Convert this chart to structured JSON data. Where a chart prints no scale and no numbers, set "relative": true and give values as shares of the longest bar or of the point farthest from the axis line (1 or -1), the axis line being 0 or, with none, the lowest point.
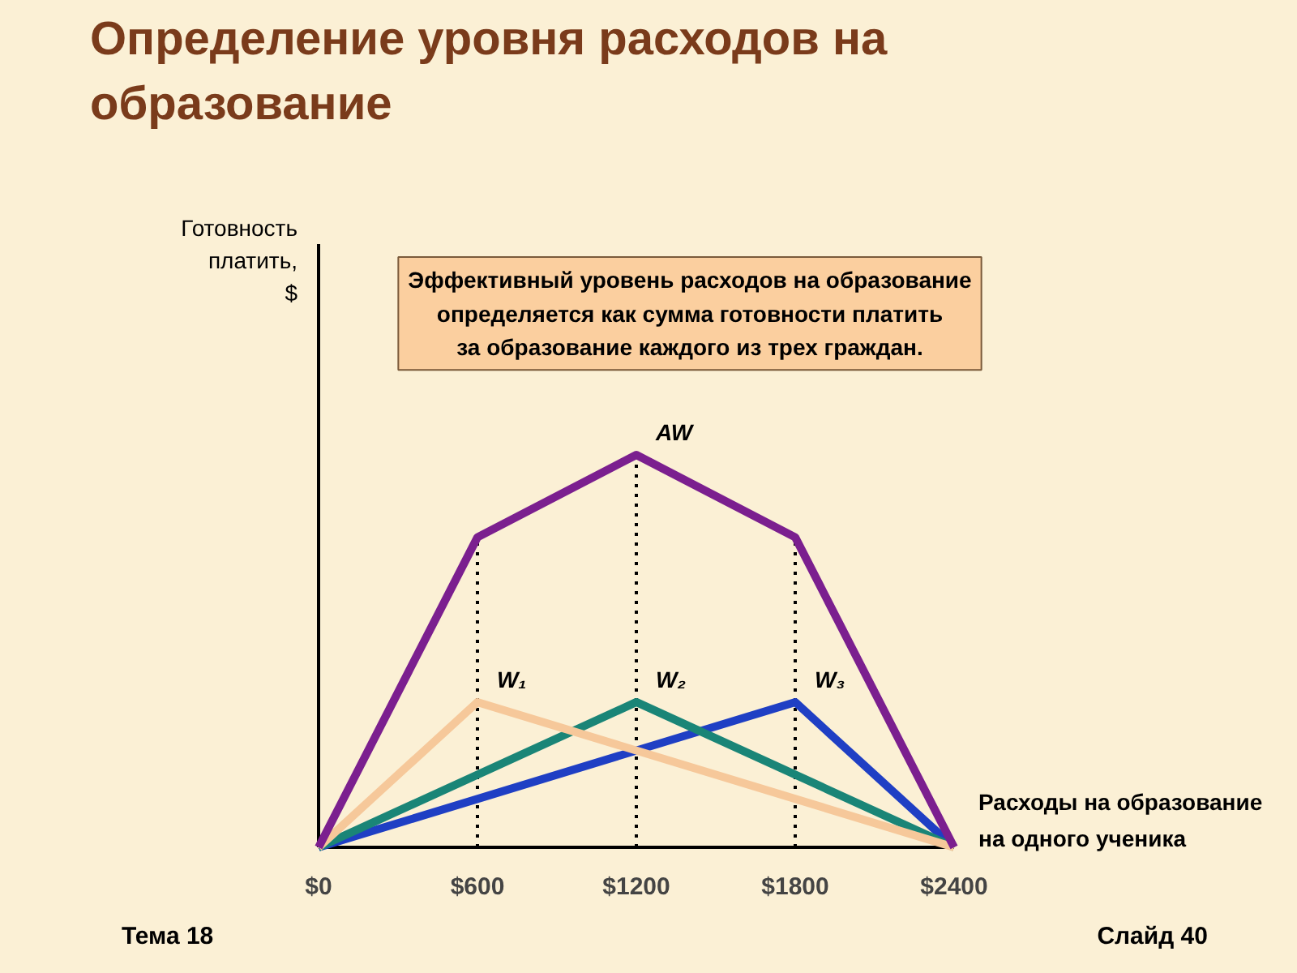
{
  "chart_data": {
    "type": "line",
    "title": "Определение уровня расходов на\nобразование",
    "xlabel": "Расходы на образование\nна одного ученика",
    "xlim": [
      0,
      2400
    ],
    "xticks": [
      {
        "value": 0,
        "label": "$0"
      },
      {
        "value": 600,
        "label": "$600"
      },
      {
        "value": 1200,
        "label": "$1200"
      },
      {
        "value": 1800,
        "label": "$1800"
      },
      {
        "value": 2400,
        "label": "$2400"
      }
    ],
    "relative": true,
    "grid": false,
    "marker": "none",
    "line_style": "solid",
    "series": [
      {
        "name": "AW",
        "color": "#7b1f8f",
        "x": [
          0,
          600,
          1200,
          1800,
          2400
        ],
        "values": [
          0,
          0.79,
          1,
          0.79,
          0
        ]
      },
      {
        "name": "W₁",
        "color": "#f6c89a",
        "x": [
          0,
          600,
          2400
        ],
        "values": [
          0,
          0.37,
          0
        ]
      },
      {
        "name": "W₂",
        "color": "#1a8577",
        "x": [
          0,
          1200,
          2400
        ],
        "values": [
          0,
          0.37,
          0
        ]
      },
      {
        "name": "W₃",
        "color": "#1f3fc4",
        "x": [
          0,
          1800,
          2400
        ],
        "values": [
          0,
          0.37,
          0
        ]
      }
    ],
    "ref_lines": [
      {
        "axis": "x",
        "value": 600,
        "line_style": "dotted",
        "color": "#000000"
      },
      {
        "axis": "x",
        "value": 1200,
        "line_style": "dotted",
        "color": "#000000"
      },
      {
        "axis": "x",
        "value": 1800,
        "line_style": "dotted",
        "color": "#000000"
      }
    ],
    "annotations": [
      "Эффективный уровень расходов на образование\nопределяется как сумма готовности платить\nза образование каждого из трех граждан.",
      "Готовность\nплатить,\n$",
      "Тема 18",
      "Слайд 40"
    ]
  }
}
